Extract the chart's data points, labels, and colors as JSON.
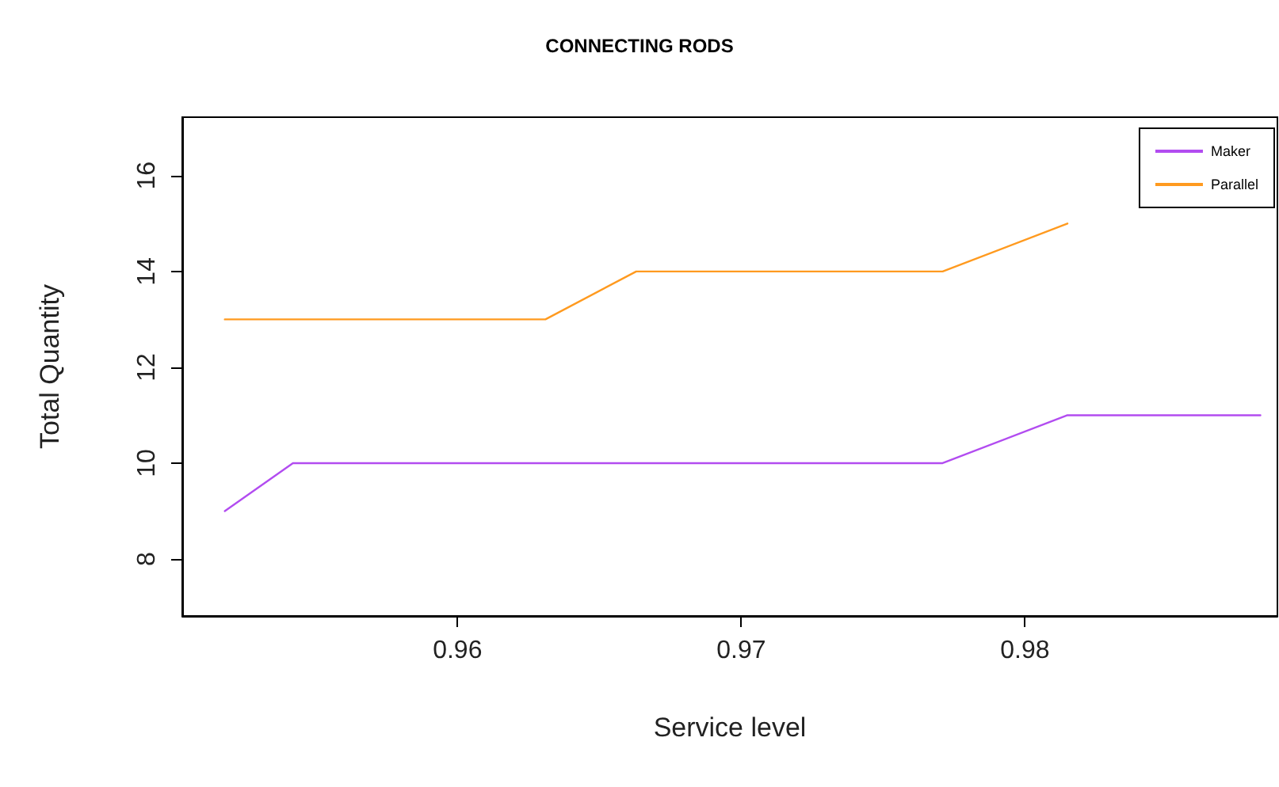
{
  "chart_data": {
    "type": "line",
    "title": "CONNECTING RODS",
    "xlabel": "Service level",
    "ylabel": "Total Quantity",
    "x": [
      0.9518,
      0.9542,
      0.9631,
      0.9663,
      0.9771,
      0.9815,
      0.9883
    ],
    "series": [
      {
        "name": "Maker",
        "color": "#b24cf0",
        "values": [
          9,
          10,
          10,
          10,
          10,
          11,
          11
        ]
      },
      {
        "name": "Parallel",
        "color": "#ff9a1f",
        "values": [
          13,
          13,
          13,
          14,
          14,
          15,
          null
        ]
      }
    ],
    "xlim": [
      0.9503,
      0.9889
    ],
    "xticks": [
      0.96,
      0.97,
      0.98
    ],
    "ylim": [
      6.81,
      17.22
    ],
    "yticks": [
      8,
      10,
      12,
      14,
      16
    ],
    "grid": false,
    "legend": "top right",
    "marker": "none",
    "line_style": "solid"
  }
}
